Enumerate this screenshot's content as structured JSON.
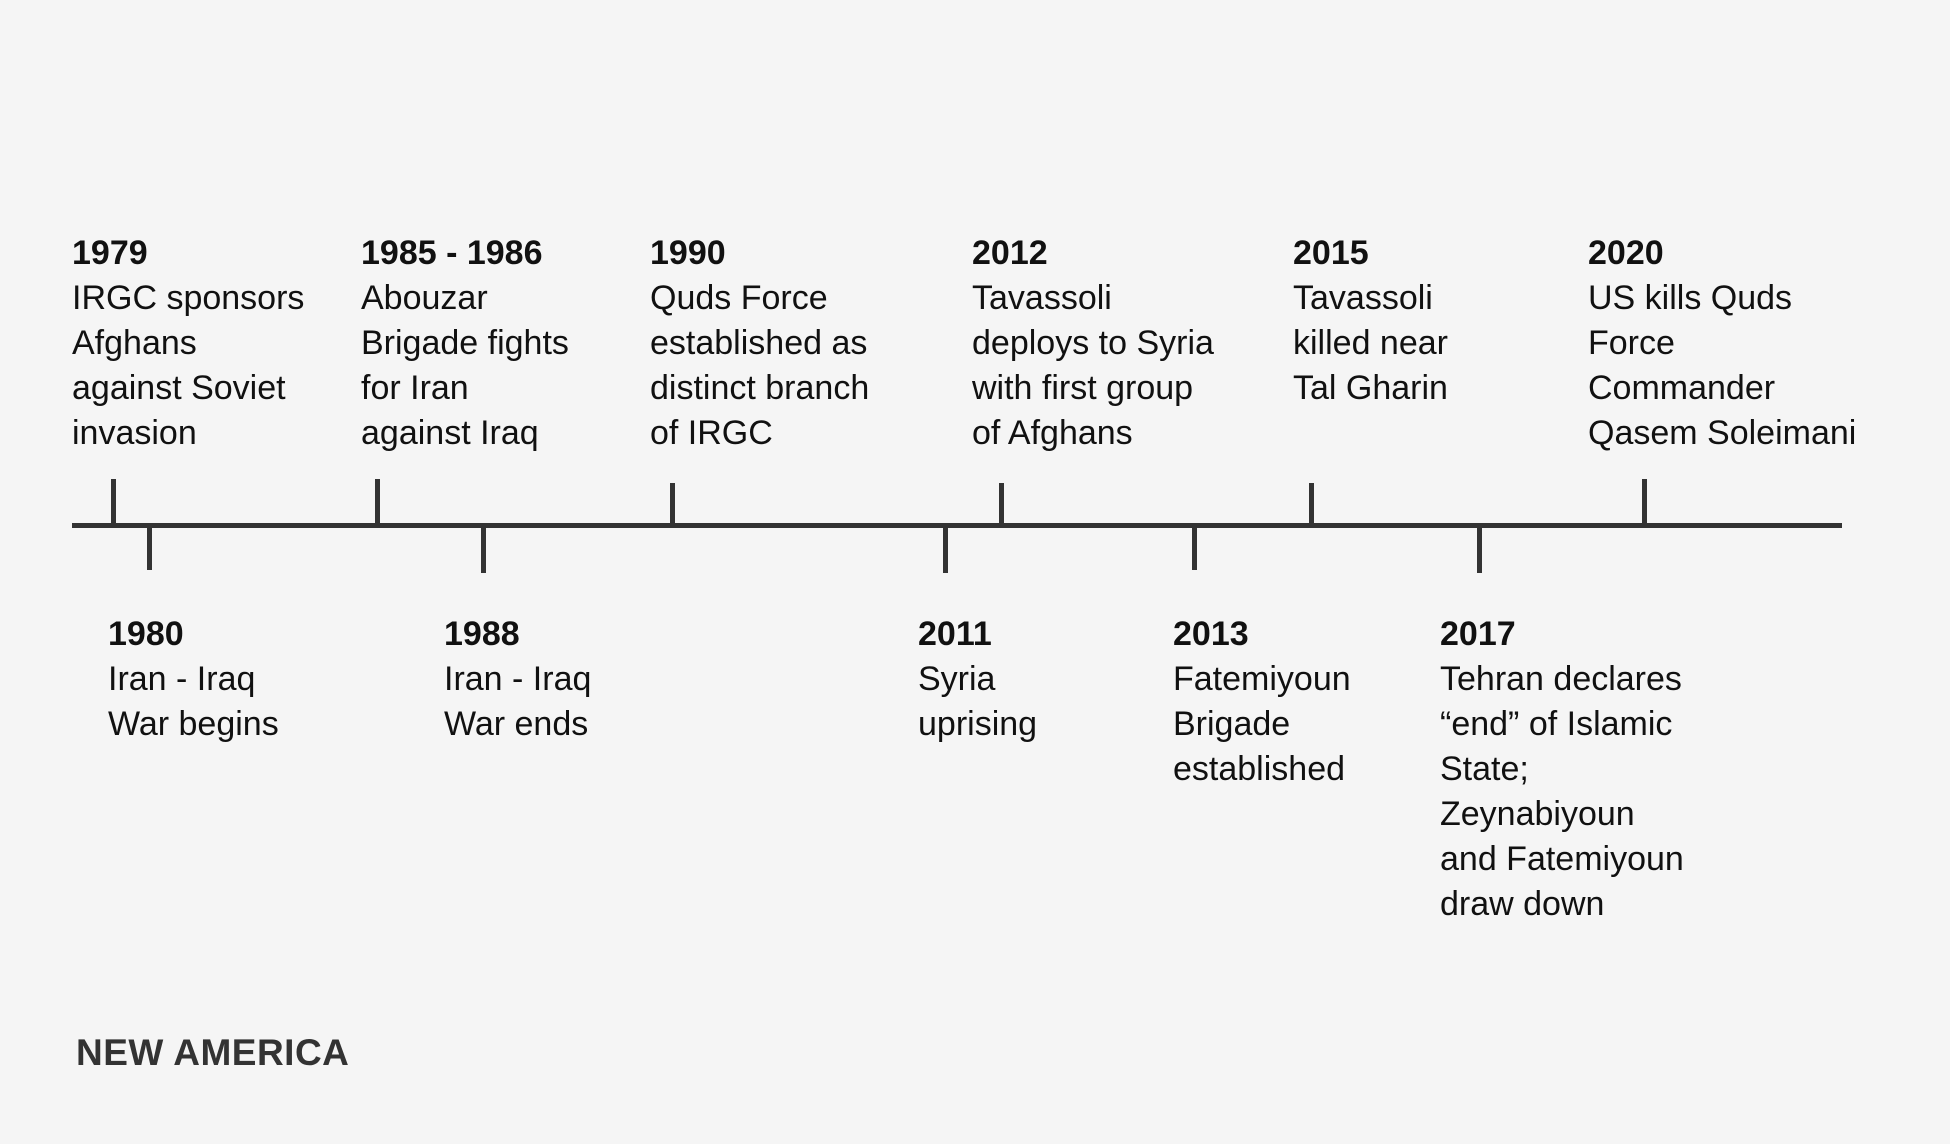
{
  "timeline": {
    "top_events": [
      {
        "year": "1979",
        "text": "IRGC sponsors\nAfghans\nagainst Soviet\ninvasion"
      },
      {
        "year": "1985 - 1986",
        "text": "Abouzar\nBrigade fights\nfor Iran\nagainst Iraq"
      },
      {
        "year": "1990",
        "text": "Quds Force\nestablished as\ndistinct branch\nof IRGC"
      },
      {
        "year": "2012",
        "text": "Tavassoli\ndeploys to Syria\nwith first group\nof Afghans"
      },
      {
        "year": "2015",
        "text": "Tavassoli\nkilled near\nTal Gharin"
      },
      {
        "year": "2020",
        "text": "US kills Quds\nForce\nCommander\nQasem Soleimani"
      }
    ],
    "bottom_events": [
      {
        "year": "1980",
        "text": "Iran - Iraq\nWar begins"
      },
      {
        "year": "1988",
        "text": "Iran - Iraq\nWar ends"
      },
      {
        "year": "2011",
        "text": "Syria\nuprising"
      },
      {
        "year": "2013",
        "text": "Fatemiyoun\nBrigade\nestablished"
      },
      {
        "year": "2017",
        "text": "Tehran declares\n“end” of Islamic\nState;\nZeynabiyoun\nand Fatemiyoun\ndraw down"
      }
    ]
  },
  "footer": {
    "logo": "NEW AMERICA"
  },
  "colors": {
    "background": "#f5f5f5",
    "line": "#333333",
    "text": "#111111"
  }
}
